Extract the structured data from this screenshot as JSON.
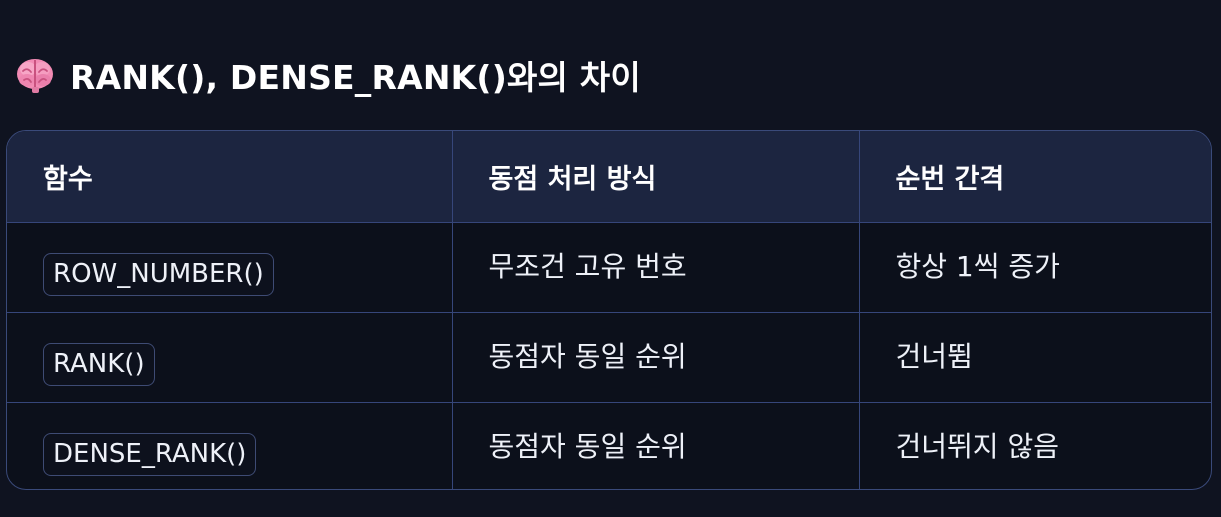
{
  "section": {
    "icon": "brain-icon",
    "title": "RANK(), DENSE_RANK()와의 차이"
  },
  "table": {
    "headers": [
      "함수",
      "동점 처리 방식",
      "순번 간격"
    ],
    "rows": [
      {
        "function": "ROW_NUMBER()",
        "tie_handling": "무조건 고유 번호",
        "gap": "항상 1씩 증가"
      },
      {
        "function": "RANK()",
        "tie_handling": "동점자 동일 순위",
        "gap": "건너뜀"
      },
      {
        "function": "DENSE_RANK()",
        "tie_handling": "동점자 동일 순위",
        "gap": "건너뛰지 않음"
      }
    ]
  },
  "colors": {
    "background": "#0f1320",
    "header_row": "#1c2540",
    "border": "#36467a",
    "brain": "#f28bb4"
  }
}
